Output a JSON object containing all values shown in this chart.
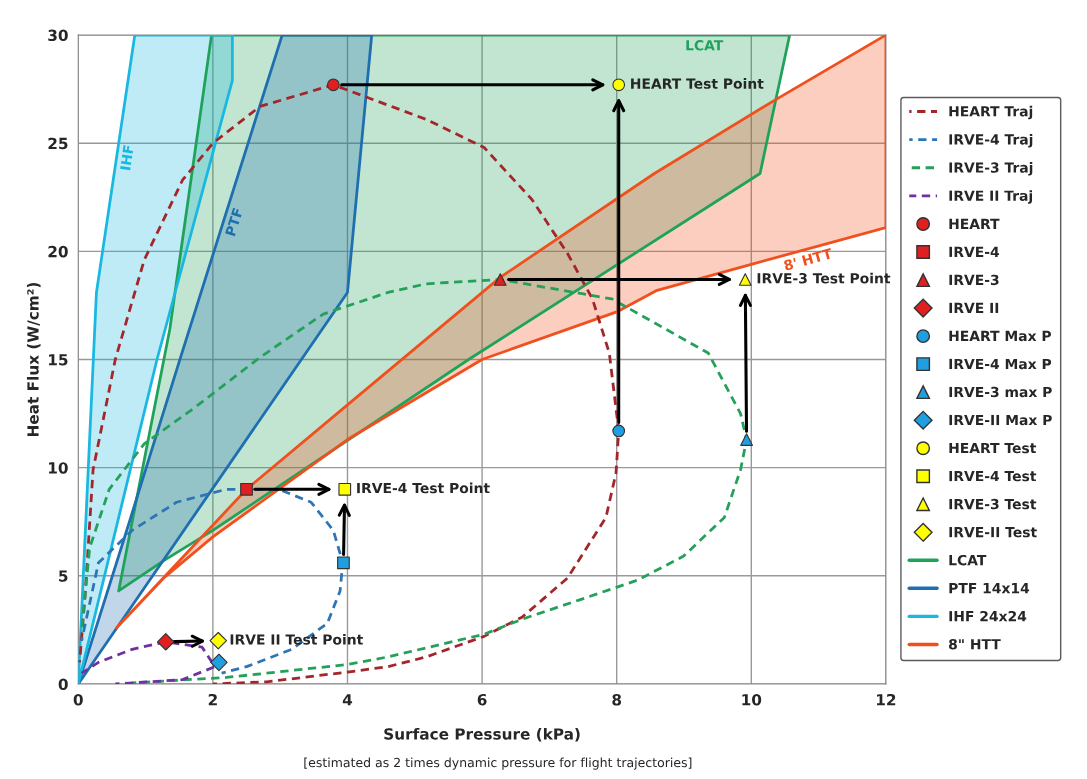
{
  "chart_data": {
    "type": "line",
    "xlabel": "Surface Pressure (kPa)",
    "ylabel": "Heat Flux (W/cm²)",
    "xlim": [
      0,
      12
    ],
    "ylim": [
      0,
      30
    ],
    "xticks": [
      0,
      2,
      4,
      6,
      8,
      10,
      12
    ],
    "yticks": [
      0,
      5,
      10,
      15,
      20,
      25,
      30
    ],
    "grid": true,
    "legend": "right",
    "marker": "none",
    "series": [
      {
        "name": "HEART Traj",
        "line_style": "dashed",
        "color": "#a3262a",
        "x": [
          0.02,
          0.1,
          0.22,
          0.46,
          0.55,
          0.98,
          1.55,
          2.0,
          2.7,
          3.79,
          5.17,
          6.03,
          6.74,
          7.27,
          7.64,
          7.89,
          8.03,
          7.99,
          7.84,
          7.27,
          6.6,
          6.03,
          5.17,
          4.6,
          4.0,
          2.8,
          2.0
        ],
        "values": [
          1.0,
          4.0,
          9.9,
          13.6,
          15.0,
          19.6,
          23.3,
          25.0,
          26.7,
          27.7,
          26.1,
          24.8,
          22.4,
          19.9,
          17.8,
          15.3,
          11.7,
          9.75,
          7.7,
          4.9,
          3.1,
          2.2,
          1.25,
          0.8,
          0.55,
          0.1,
          0.0
        ]
      },
      {
        "name": "IRVE-4 Traj",
        "line_style": "dashed",
        "color": "#2e75b6",
        "x": [
          0.05,
          0.3,
          0.8,
          1.46,
          2.2,
          2.98,
          3.46,
          3.79,
          3.93,
          3.89,
          3.7,
          3.17,
          2.5,
          2.13
        ],
        "values": [
          2.0,
          5.6,
          7.1,
          8.4,
          9.0,
          9.0,
          8.4,
          7.1,
          5.6,
          4.3,
          2.8,
          1.6,
          0.8,
          0.5
        ]
      },
      {
        "name": "IRVE-3 Traj",
        "line_style": "dashed",
        "color": "#25a05a",
        "x": [
          0.05,
          0.17,
          0.46,
          0.98,
          1.74,
          2.7,
          3.64,
          4.6,
          5.17,
          6.27,
          7.93,
          9.36,
          9.84,
          9.93,
          9.84,
          9.6,
          8.99,
          8.31,
          7.46,
          6.6,
          6.03,
          4.6,
          4.0,
          2.2,
          0.8
        ],
        "values": [
          2.5,
          6.3,
          9.0,
          11.1,
          12.8,
          15.1,
          17.1,
          18.1,
          18.5,
          18.7,
          17.8,
          15.3,
          12.5,
          11.3,
          9.9,
          7.7,
          5.9,
          4.8,
          3.9,
          3.0,
          2.3,
          1.25,
          0.9,
          0.3,
          0.05
        ]
      },
      {
        "name": "IRVE II Traj",
        "line_style": "dashed",
        "color": "#7030a0",
        "x": [
          0.05,
          0.3,
          0.8,
          1.3,
          1.84,
          2.03,
          1.55,
          0.55
        ],
        "values": [
          0.5,
          1.0,
          1.6,
          1.95,
          1.7,
          0.8,
          0.2,
          0.0
        ]
      },
      {
        "name": "HEART",
        "type": "scatter",
        "marker": "circle",
        "color": "#e02020",
        "x": [
          3.79
        ],
        "values": [
          27.7
        ]
      },
      {
        "name": "IRVE-4",
        "type": "scatter",
        "marker": "square",
        "color": "#e02020",
        "x": [
          2.5
        ],
        "values": [
          9.0
        ]
      },
      {
        "name": "IRVE-3",
        "type": "scatter",
        "marker": "triangle",
        "color": "#e02020",
        "x": [
          6.27
        ],
        "values": [
          18.7
        ]
      },
      {
        "name": "IRVE II",
        "type": "scatter",
        "marker": "diamond",
        "color": "#e02020",
        "x": [
          1.3
        ],
        "values": [
          1.95
        ]
      },
      {
        "name": "HEART Max P",
        "type": "scatter",
        "marker": "circle",
        "color": "#1f9fe0",
        "x": [
          8.03
        ],
        "values": [
          11.7
        ]
      },
      {
        "name": "IRVE-4 Max P",
        "type": "scatter",
        "marker": "square",
        "color": "#1f9fe0",
        "x": [
          3.94
        ],
        "values": [
          5.6
        ]
      },
      {
        "name": "IRVE-3 max P",
        "type": "scatter",
        "marker": "triangle",
        "color": "#1f9fe0",
        "x": [
          9.93
        ],
        "values": [
          11.3
        ]
      },
      {
        "name": "IRVE-II Max P",
        "type": "scatter",
        "marker": "diamond",
        "color": "#1f9fe0",
        "x": [
          2.09
        ],
        "values": [
          1.0
        ]
      },
      {
        "name": "HEART Test",
        "type": "scatter",
        "marker": "circle",
        "color": "#ffff00",
        "x": [
          8.03
        ],
        "values": [
          27.7
        ]
      },
      {
        "name": "IRVE-4 Test",
        "type": "scatter",
        "marker": "square",
        "color": "#ffff00",
        "x": [
          3.96
        ],
        "values": [
          9.0
        ]
      },
      {
        "name": "IRVE-3 Test",
        "type": "scatter",
        "marker": "triangle",
        "color": "#ffff00",
        "x": [
          9.91
        ],
        "values": [
          18.7
        ]
      },
      {
        "name": "IRVE-II Test",
        "type": "scatter",
        "marker": "diamond",
        "color": "#ffff00",
        "x": [
          2.08
        ],
        "values": [
          2.0
        ]
      },
      {
        "name": "LCAT",
        "type": "area",
        "color": "#1fa35b",
        "x": [
          0.6,
          1.36,
          1.98,
          10.57,
          10.13,
          5.8,
          2.0,
          1.27,
          0.6
        ],
        "values": [
          4.3,
          16.4,
          30.0,
          30.0,
          23.6,
          15.0,
          7.1,
          5.7,
          4.3
        ]
      },
      {
        "name": "PTF 14x14",
        "type": "area",
        "color": "#1f6fb0",
        "x": [
          0.0,
          0.7,
          1.5,
          3.03,
          4.36,
          4.0,
          0.0
        ],
        "values": [
          0.0,
          6.9,
          14.9,
          30.0,
          30.0,
          18.1,
          0.0
        ]
      },
      {
        "name": "IHF 24x24",
        "type": "area",
        "color": "#1ab8e0",
        "x": [
          0.0,
          0.27,
          0.84,
          2.29,
          2.29,
          1.17,
          0.0
        ],
        "values": [
          0.0,
          18.1,
          30.0,
          30.0,
          27.9,
          15.0,
          0.0
        ]
      },
      {
        "name": "8\" HTT",
        "type": "area",
        "color": "#f0501e",
        "x": [
          0.57,
          2.5,
          4.0,
          6.27,
          8.56,
          10.3,
          12.0,
          12.0,
          10.0,
          8.6,
          8.0,
          6.0,
          4.0,
          2.0,
          1.27,
          0.57
        ],
        "values": [
          2.6,
          9.0,
          12.9,
          18.8,
          23.6,
          26.9,
          30.0,
          21.1,
          19.4,
          18.2,
          17.2,
          15.0,
          11.3,
          6.8,
          4.9,
          2.6
        ]
      }
    ],
    "annotations": [
      {
        "text": "HEART Test Point",
        "x": 8.03,
        "y": 27.7
      },
      {
        "text": "IRVE-3 Test Point",
        "x": 9.91,
        "y": 18.7
      },
      {
        "text": "IRVE-4 Test Point",
        "x": 3.96,
        "y": 9.0
      },
      {
        "text": "IRVE II Test Point",
        "x": 2.08,
        "y": 2.0
      },
      {
        "text": "LCAT",
        "x": 9.3,
        "y": 30
      },
      {
        "text": "8' HTT",
        "x": 10.8,
        "y": 20.08
      },
      {
        "text": "IHF",
        "x": 0.572,
        "y": 24.4
      },
      {
        "text": "PTF",
        "x": 2.169,
        "y": 21.5
      },
      "[estimated as 2 times dynamic pressure for flight trajectories]"
    ]
  }
}
